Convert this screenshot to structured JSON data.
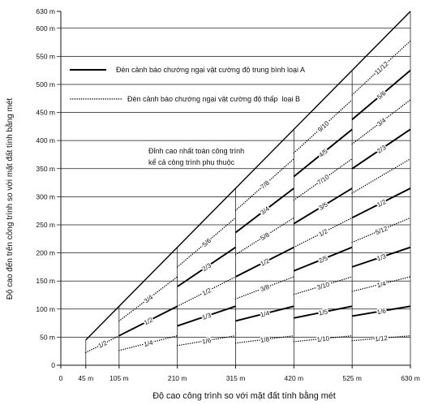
{
  "colors": {
    "lines": "#000000",
    "background": "#ffffff"
  },
  "chart_data": {
    "type": "line",
    "title": "",
    "xlabel": "Độ cao công trình so với mặt đất tính bằng mét",
    "ylabel": "Độ cao đến trên công trình so với mặt đất tính bằng mét",
    "xlim": [
      0,
      630
    ],
    "ylim": [
      0,
      630
    ],
    "grid": true,
    "x_ticks": [
      {
        "value": 0,
        "label": "0"
      },
      {
        "value": 45,
        "label": "45 m"
      },
      {
        "value": 105,
        "label": "105 m"
      },
      {
        "value": 210,
        "label": "210 m"
      },
      {
        "value": 315,
        "label": "315 m"
      },
      {
        "value": 420,
        "label": "420 m"
      },
      {
        "value": 525,
        "label": "525 m"
      },
      {
        "value": 630,
        "label": "630 m"
      }
    ],
    "y_ticks": [
      {
        "value": 0,
        "label": "0"
      },
      {
        "value": 50,
        "label": "50 m"
      },
      {
        "value": 100,
        "label": "100 m"
      },
      {
        "value": 150,
        "label": "150 m"
      },
      {
        "value": 200,
        "label": "200 m"
      },
      {
        "value": 250,
        "label": "250 m"
      },
      {
        "value": 300,
        "label": "300 m"
      },
      {
        "value": 350,
        "label": "350 m"
      },
      {
        "value": 400,
        "label": "400 m"
      },
      {
        "value": 450,
        "label": "450 m"
      },
      {
        "value": 500,
        "label": "500 m"
      },
      {
        "value": 550,
        "label": "550 m"
      },
      {
        "value": 600,
        "label": "600 m"
      },
      {
        "value": 630,
        "label": "630 m"
      }
    ],
    "legend_placement": "top-left",
    "legend": [
      {
        "label": "Đèn cảnh báo chướng ngại vật cường độ trung bình loại A",
        "style": "solid"
      },
      {
        "label": "Đèn cảnh báo chướng ngại vật cường độ thấp  loại B",
        "style": "dotted"
      }
    ],
    "annotation": [
      "Đỉnh cao nhất toàn công trình",
      "kể cả công trình phụ thuộc"
    ],
    "top_line": {
      "x": [
        45,
        630
      ],
      "y": [
        45,
        630
      ],
      "style": "solid"
    },
    "bands": [
      {
        "x": [
          45,
          105
        ],
        "lines": [
          {
            "label": "1/2",
            "y": [
              22.5,
              52.5
            ],
            "style": "dotted"
          }
        ]
      },
      {
        "x": [
          105,
          210
        ],
        "lines": [
          {
            "label": "1/4",
            "y": [
              26.25,
              52.5
            ],
            "style": "dotted"
          },
          {
            "label": "1/2",
            "y": [
              52.5,
              105
            ],
            "style": "solid"
          },
          {
            "label": "3/4",
            "y": [
              78.75,
              157.5
            ],
            "style": "dotted"
          }
        ]
      },
      {
        "x": [
          210,
          315
        ],
        "lines": [
          {
            "label": "1/6",
            "y": [
              35,
              52.5
            ],
            "style": "dotted"
          },
          {
            "label": "1/3",
            "y": [
              70,
              105
            ],
            "style": "solid"
          },
          {
            "label": "1/2",
            "y": [
              105,
              157.5
            ],
            "style": "dotted"
          },
          {
            "label": "2/3",
            "y": [
              140,
              210
            ],
            "style": "solid"
          },
          {
            "label": "5/6",
            "y": [
              175,
              262.5
            ],
            "style": "dotted"
          }
        ]
      },
      {
        "x": [
          315,
          420
        ],
        "lines": [
          {
            "label": "1/8",
            "y": [
              39.4,
              52.5
            ],
            "style": "dotted"
          },
          {
            "label": "1/4",
            "y": [
              78.8,
              105
            ],
            "style": "solid"
          },
          {
            "label": "3/8",
            "y": [
              118.1,
              157.5
            ],
            "style": "dotted"
          },
          {
            "label": "1/2",
            "y": [
              157.5,
              210
            ],
            "style": "solid"
          },
          {
            "label": "5/8",
            "y": [
              196.9,
              262.5
            ],
            "style": "dotted"
          },
          {
            "label": "3/4",
            "y": [
              236.3,
              315
            ],
            "style": "solid"
          },
          {
            "label": "7/8",
            "y": [
              275.6,
              367.5
            ],
            "style": "dotted"
          }
        ]
      },
      {
        "x": [
          420,
          525
        ],
        "lines": [
          {
            "label": "1/10",
            "y": [
              42,
              52.5
            ],
            "style": "dotted"
          },
          {
            "label": "1/5",
            "y": [
              84,
              105
            ],
            "style": "solid"
          },
          {
            "label": "3/10",
            "y": [
              126,
              157.5
            ],
            "style": "dotted"
          },
          {
            "label": "2/5",
            "y": [
              168,
              210
            ],
            "style": "solid"
          },
          {
            "label": "1/2",
            "y": [
              210,
              262.5
            ],
            "style": "dotted"
          },
          {
            "label": "3/5",
            "y": [
              252,
              315
            ],
            "style": "solid"
          },
          {
            "label": "7/10",
            "y": [
              294,
              367.5
            ],
            "style": "dotted"
          },
          {
            "label": "4/5",
            "y": [
              336,
              420
            ],
            "style": "solid"
          },
          {
            "label": "9/10",
            "y": [
              378,
              472.5
            ],
            "style": "dotted"
          }
        ]
      },
      {
        "x": [
          525,
          630
        ],
        "lines": [
          {
            "label": "1/12",
            "y": [
              43.8,
              52.5
            ],
            "style": "dotted"
          },
          {
            "label": "1/6",
            "y": [
              87.5,
              105
            ],
            "style": "solid"
          },
          {
            "label": "1/4",
            "y": [
              131.3,
              157.5
            ],
            "style": "dotted"
          },
          {
            "label": "1/3",
            "y": [
              175,
              210
            ],
            "style": "solid"
          },
          {
            "label": "5/12",
            "y": [
              218.8,
              262.5
            ],
            "style": "dotted"
          },
          {
            "label": "1/2",
            "y": [
              262.5,
              315
            ],
            "style": "solid"
          },
          {
            "label": "",
            "y": [
              306.3,
              367.5
            ],
            "style": "dotted"
          },
          {
            "label": "2/3",
            "y": [
              350,
              420
            ],
            "style": "solid"
          },
          {
            "label": "3/4",
            "y": [
              393.8,
              472.5
            ],
            "style": "dotted"
          },
          {
            "label": "5/6",
            "y": [
              437.5,
              525
            ],
            "style": "solid"
          },
          {
            "label": "11/12",
            "y": [
              481.3,
              577.5
            ],
            "style": "dotted"
          }
        ]
      }
    ]
  }
}
